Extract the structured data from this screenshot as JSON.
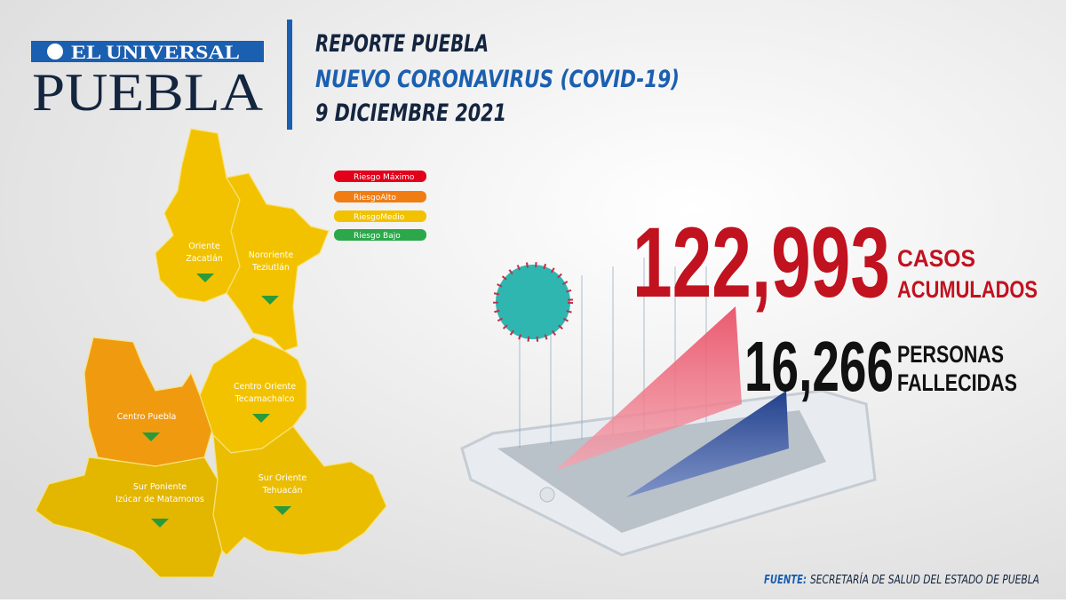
{
  "header": {
    "logo_top": "EL UNIVERSAL",
    "logo_bottom": "PUEBLA",
    "title": "REPORTE PUEBLA",
    "subtitle": "NUEVO CORONAVIRUS (COVID-19)",
    "date": "9 DICIEMBRE 2021"
  },
  "legend": [
    "Riesgo Máximo",
    "RiesgoAlto",
    "RiesgoMedio",
    "Riesgo Bajo"
  ],
  "regions": [
    {
      "name": "Oriente",
      "sub": "Zacatlán"
    },
    {
      "name": "Nororiente",
      "sub": "Teziutlán"
    },
    {
      "name": "Centro  Puebla"
    },
    {
      "name": "Centro Oriente",
      "sub": "Tecamachalco"
    },
    {
      "name": "Sur Poniente",
      "sub": "Izúcar de Matamoros"
    },
    {
      "name": "Sur Oriente",
      "sub": "Tehuacán"
    }
  ],
  "stats": [
    {
      "number": "122,993",
      "line1": "CASOS",
      "line2": "ACUMULADOS"
    },
    {
      "number": "16,266",
      "line1": "PERSONAS",
      "line2": "FALLECIDAS"
    }
  ],
  "source": {
    "label": "FUENTE:",
    "text": "SECRETARÍA DE SALUD DEL ESTADO DE PUEBLA"
  }
}
